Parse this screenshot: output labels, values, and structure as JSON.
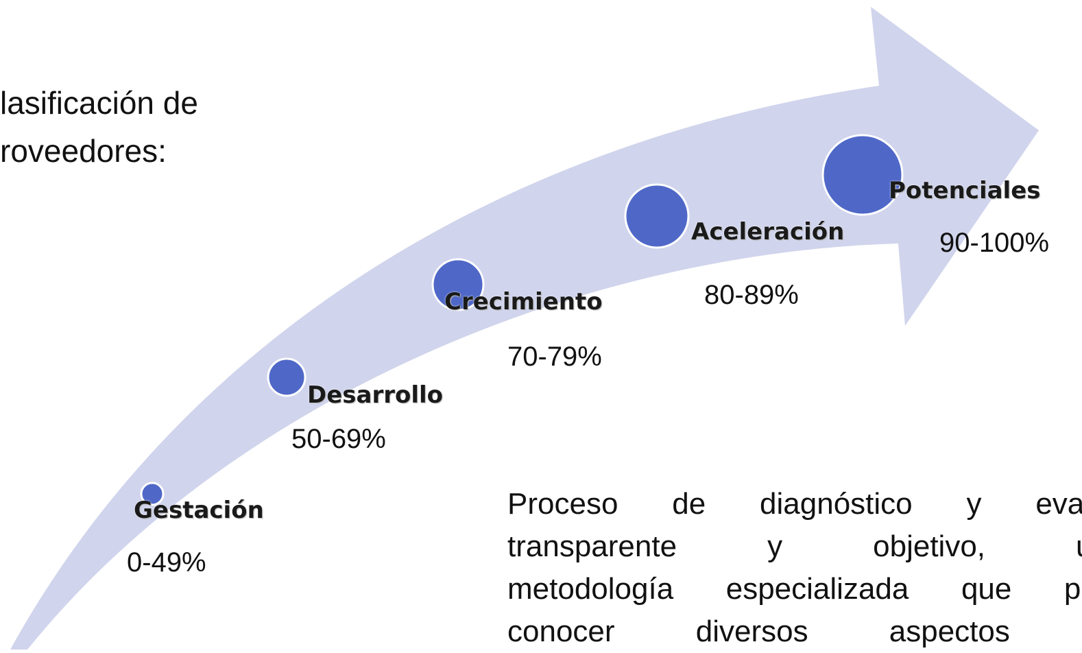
{
  "title_lines": [
    "lasificación de",
    "roveedores:"
  ],
  "stages": [
    {
      "label": "Gestación",
      "range": "0-49%"
    },
    {
      "label": "Desarrollo",
      "range": "50-69%"
    },
    {
      "label": "Crecimiento",
      "range": "70-79%"
    },
    {
      "label": "Aceleración",
      "range": "80-89%"
    },
    {
      "label": "Potenciales",
      "range": "90-100%"
    }
  ],
  "description_lines": [
    "Proceso de diagnóstico y evalua",
    "transparente y objetivo, usa",
    "metodología especializada que pern",
    "conocer diversos aspectos de"
  ]
}
